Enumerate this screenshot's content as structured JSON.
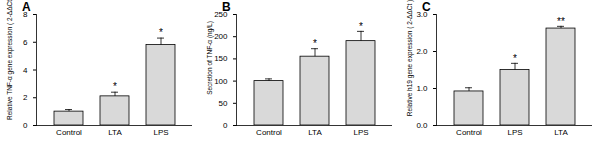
{
  "chart_data": [
    {
      "type": "bar",
      "title": "A",
      "y_label": "Relative TNF-α gene expression ( 2-ΔΔCt )",
      "categories": [
        "Control",
        "LTA",
        "LPS"
      ],
      "values": [
        1.0,
        2.1,
        5.8
      ],
      "errors": [
        0.15,
        0.3,
        0.5
      ],
      "significance": [
        null,
        "*",
        "*"
      ],
      "color": "#d9d9d9",
      "ylim": [
        0,
        8
      ],
      "yticks": [
        0,
        2,
        4,
        6,
        8
      ],
      "grid": false
    },
    {
      "type": "bar",
      "title": "B",
      "y_label": "Secretion of TNF-α (ng/L)",
      "categories": [
        "Control",
        "LTA",
        "LPS"
      ],
      "values": [
        100,
        155,
        190
      ],
      "errors": [
        5,
        18,
        22
      ],
      "significance": [
        null,
        "*",
        "*"
      ],
      "color": "#d9d9d9",
      "ylim": [
        0,
        250
      ],
      "yticks": [
        0,
        50,
        100,
        150,
        200,
        250
      ],
      "grid": false
    },
    {
      "type": "bar",
      "title": "C",
      "y_label": "Relative h19 gene expression ( 2-ΔΔCt )",
      "categories": [
        "Control",
        "LPS",
        "LTA"
      ],
      "values": [
        0.92,
        1.5,
        2.62
      ],
      "errors": [
        0.1,
        0.18,
        0.06
      ],
      "significance": [
        null,
        "*",
        "**"
      ],
      "color": "#d9d9d9",
      "ylim": [
        0,
        3
      ],
      "yticks": [
        0,
        1,
        2,
        3
      ],
      "grid": false
    }
  ]
}
